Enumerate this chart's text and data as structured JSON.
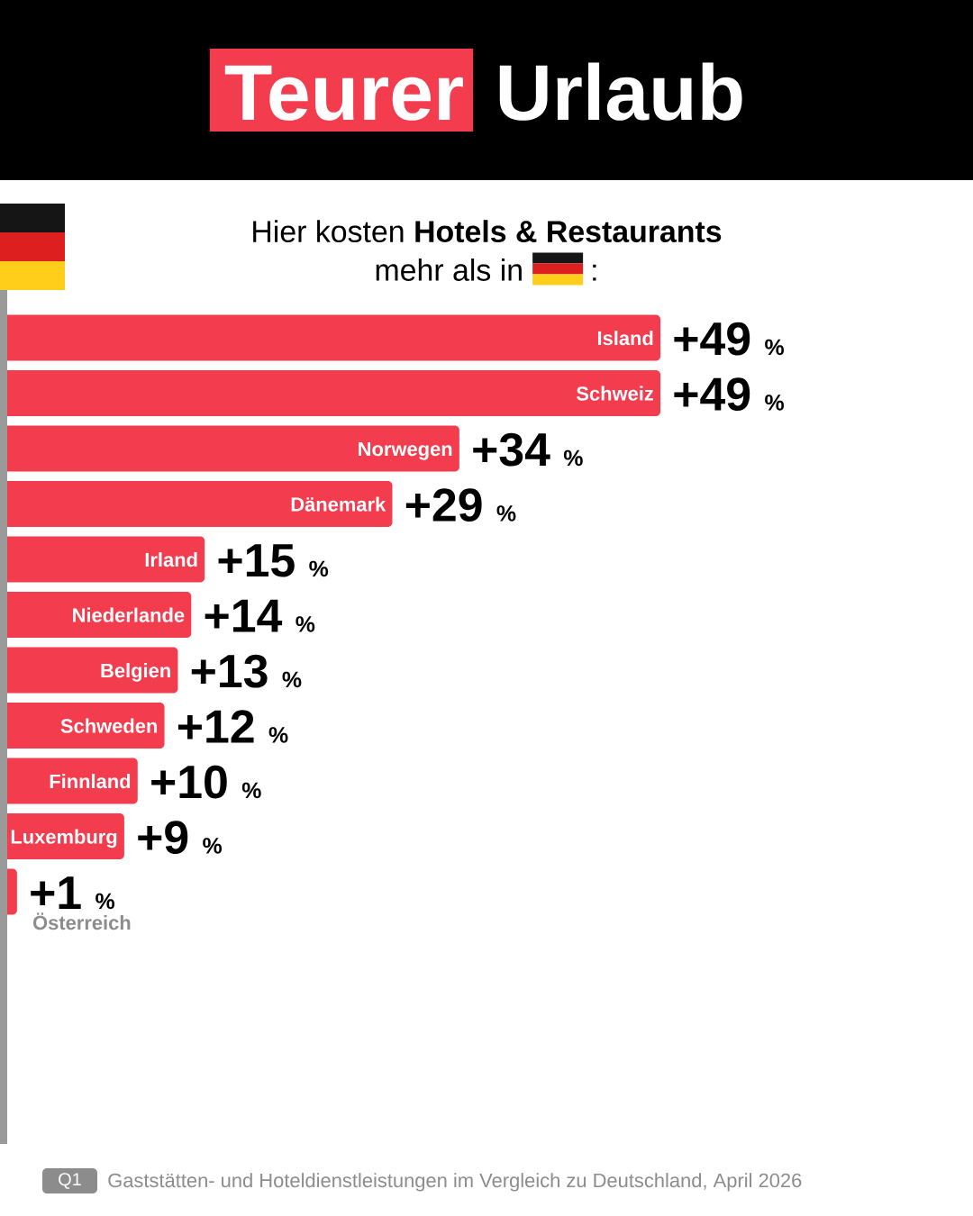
{
  "chart_data": {
    "type": "bar",
    "orientation": "horizontal",
    "title": "Teurer Urlaub",
    "subtitle": "Hier kosten **Hotels & Restaurants** mehr als in",
    "categories": [
      "Island",
      "Schweiz",
      "Norwegen",
      "Dänemark",
      "Irland",
      "Niederlande",
      "Belgien",
      "Schweden",
      "Finnland",
      "Luxemburg",
      "Österreich"
    ],
    "values": [
      49,
      49,
      34,
      29,
      15,
      14,
      13,
      12,
      10,
      9,
      1
    ],
    "value_labels": [
      "+49 %",
      "+49 %",
      "+34 %",
      "+29 %",
      "+15 %",
      "+14 %",
      "+13 %",
      "+12 %",
      "+10 %",
      "+9 %",
      "+1 %"
    ],
    "color": "#f43c4f",
    "tick_labels": "y",
    "annotations": [
      ":",
      "Q1",
      "Gaststätten- und Hoteldienstleistungen im Vergleich zu Deutschland, April 2026"
    ]
  }
}
